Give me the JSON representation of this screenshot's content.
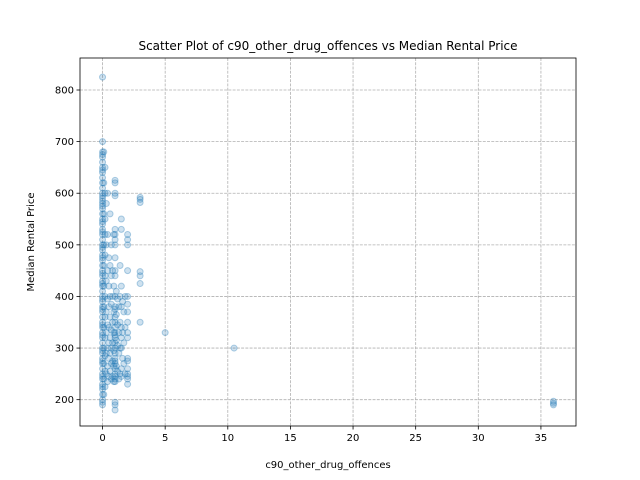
{
  "chart_data": {
    "type": "scatter",
    "title": "Scatter Plot of c90_other_drug_offences vs Median Rental Price",
    "xlabel": "c90_other_drug_offences",
    "ylabel": "Median Rental Price",
    "xlim": [
      -1.8,
      37.8
    ],
    "ylim": [
      149,
      862
    ],
    "xticks": [
      0,
      5,
      10,
      15,
      20,
      25,
      30,
      35
    ],
    "yticks": [
      200,
      300,
      400,
      500,
      600,
      700,
      800
    ],
    "grid": true,
    "color": "#1f77b4",
    "points": [
      [
        0,
        825
      ],
      [
        0,
        700
      ],
      [
        0,
        680
      ],
      [
        0,
        675
      ],
      [
        0,
        670
      ],
      [
        0,
        660
      ],
      [
        0,
        650
      ],
      [
        0,
        645
      ],
      [
        0,
        640
      ],
      [
        0,
        630
      ],
      [
        0,
        620
      ],
      [
        0,
        610
      ],
      [
        0,
        600
      ],
      [
        0,
        595
      ],
      [
        0,
        590
      ],
      [
        0,
        585
      ],
      [
        0,
        580
      ],
      [
        0,
        575
      ],
      [
        0,
        570
      ],
      [
        0,
        560
      ],
      [
        0,
        550
      ],
      [
        0,
        545
      ],
      [
        0,
        540
      ],
      [
        0,
        530
      ],
      [
        0,
        525
      ],
      [
        0,
        520
      ],
      [
        0,
        510
      ],
      [
        0,
        500
      ],
      [
        0,
        495
      ],
      [
        0,
        490
      ],
      [
        0,
        480
      ],
      [
        0,
        475
      ],
      [
        0,
        470
      ],
      [
        0,
        460
      ],
      [
        0,
        450
      ],
      [
        0,
        445
      ],
      [
        0,
        440
      ],
      [
        0,
        430
      ],
      [
        0,
        425
      ],
      [
        0,
        420
      ],
      [
        0,
        410
      ],
      [
        0,
        400
      ],
      [
        0,
        395
      ],
      [
        0,
        390
      ],
      [
        0,
        380
      ],
      [
        0,
        375
      ],
      [
        0,
        370
      ],
      [
        0,
        360
      ],
      [
        0,
        350
      ],
      [
        0,
        345
      ],
      [
        0,
        340
      ],
      [
        0,
        330
      ],
      [
        0,
        325
      ],
      [
        0,
        320
      ],
      [
        0,
        310
      ],
      [
        0,
        300
      ],
      [
        0,
        295
      ],
      [
        0,
        290
      ],
      [
        0,
        280
      ],
      [
        0,
        275
      ],
      [
        0,
        270
      ],
      [
        0,
        260
      ],
      [
        0,
        250
      ],
      [
        0,
        245
      ],
      [
        0,
        240
      ],
      [
        0,
        230
      ],
      [
        0,
        225
      ],
      [
        0,
        220
      ],
      [
        0,
        210
      ],
      [
        0,
        200
      ],
      [
        0,
        195
      ],
      [
        0,
        190
      ],
      [
        0.1,
        680
      ],
      [
        0.1,
        620
      ],
      [
        0.1,
        560
      ],
      [
        0.1,
        500
      ],
      [
        0.1,
        460
      ],
      [
        0.1,
        420
      ],
      [
        0.1,
        380
      ],
      [
        0.1,
        340
      ],
      [
        0.1,
        300
      ],
      [
        0.1,
        270
      ],
      [
        0.1,
        240
      ],
      [
        0.1,
        210
      ],
      [
        0.2,
        650
      ],
      [
        0.2,
        600
      ],
      [
        0.2,
        550
      ],
      [
        0.2,
        520
      ],
      [
        0.2,
        480
      ],
      [
        0.2,
        440
      ],
      [
        0.2,
        400
      ],
      [
        0.2,
        360
      ],
      [
        0.2,
        320
      ],
      [
        0.2,
        285
      ],
      [
        0.2,
        255
      ],
      [
        0.2,
        225
      ],
      [
        0.3,
        580
      ],
      [
        0.3,
        500
      ],
      [
        0.3,
        430
      ],
      [
        0.3,
        370
      ],
      [
        0.3,
        330
      ],
      [
        0.3,
        290
      ],
      [
        0.3,
        250
      ],
      [
        0.4,
        600
      ],
      [
        0.4,
        520
      ],
      [
        0.4,
        450
      ],
      [
        0.4,
        395
      ],
      [
        0.4,
        345
      ],
      [
        0.4,
        300
      ],
      [
        0.4,
        265
      ],
      [
        0.4,
        235
      ],
      [
        0.5,
        475
      ],
      [
        0.5,
        420
      ],
      [
        0.5,
        380
      ],
      [
        0.5,
        340
      ],
      [
        0.5,
        310
      ],
      [
        0.5,
        280
      ],
      [
        0.5,
        245
      ],
      [
        0.6,
        560
      ],
      [
        0.6,
        460
      ],
      [
        0.6,
        400
      ],
      [
        0.6,
        360
      ],
      [
        0.6,
        320
      ],
      [
        0.6,
        290
      ],
      [
        0.6,
        255
      ],
      [
        0.7,
        500
      ],
      [
        0.7,
        440
      ],
      [
        0.7,
        385
      ],
      [
        0.7,
        335
      ],
      [
        0.7,
        300
      ],
      [
        0.7,
        270
      ],
      [
        0.7,
        240
      ],
      [
        0.8,
        450
      ],
      [
        0.8,
        400
      ],
      [
        0.8,
        350
      ],
      [
        0.8,
        310
      ],
      [
        0.8,
        275
      ],
      [
        0.8,
        245
      ],
      [
        0.9,
        520
      ],
      [
        0.9,
        420
      ],
      [
        0.9,
        370
      ],
      [
        0.9,
        330
      ],
      [
        0.9,
        295
      ],
      [
        0.9,
        265
      ],
      [
        0.9,
        235
      ],
      [
        1,
        625
      ],
      [
        1,
        620
      ],
      [
        1,
        600
      ],
      [
        1,
        595
      ],
      [
        1,
        530
      ],
      [
        1,
        520
      ],
      [
        1,
        510
      ],
      [
        1,
        500
      ],
      [
        1,
        475
      ],
      [
        1,
        450
      ],
      [
        1,
        440
      ],
      [
        1,
        400
      ],
      [
        1,
        380
      ],
      [
        1,
        375
      ],
      [
        1,
        360
      ],
      [
        1,
        350
      ],
      [
        1,
        340
      ],
      [
        1,
        330
      ],
      [
        1,
        325
      ],
      [
        1,
        320
      ],
      [
        1,
        310
      ],
      [
        1,
        300
      ],
      [
        1,
        290
      ],
      [
        1,
        280
      ],
      [
        1,
        275
      ],
      [
        1,
        270
      ],
      [
        1,
        260
      ],
      [
        1,
        250
      ],
      [
        1,
        245
      ],
      [
        1,
        240
      ],
      [
        1,
        235
      ],
      [
        1,
        195
      ],
      [
        1,
        190
      ],
      [
        1,
        180
      ],
      [
        1.1,
        410
      ],
      [
        1.1,
        365
      ],
      [
        1.1,
        315
      ],
      [
        1.1,
        265
      ],
      [
        1.2,
        395
      ],
      [
        1.2,
        345
      ],
      [
        1.2,
        305
      ],
      [
        1.2,
        255
      ],
      [
        1.3,
        380
      ],
      [
        1.3,
        330
      ],
      [
        1.3,
        290
      ],
      [
        1.3,
        240
      ],
      [
        1.4,
        460
      ],
      [
        1.4,
        400
      ],
      [
        1.4,
        350
      ],
      [
        1.4,
        300
      ],
      [
        1.4,
        250
      ],
      [
        1.5,
        550
      ],
      [
        1.5,
        530
      ],
      [
        1.5,
        420
      ],
      [
        1.5,
        380
      ],
      [
        1.5,
        340
      ],
      [
        1.5,
        320
      ],
      [
        1.5,
        300
      ],
      [
        1.5,
        260
      ],
      [
        1.5,
        245
      ],
      [
        1.6,
        390
      ],
      [
        1.6,
        330
      ],
      [
        1.6,
        280
      ],
      [
        1.7,
        370
      ],
      [
        1.7,
        310
      ],
      [
        1.7,
        270
      ],
      [
        1.8,
        400
      ],
      [
        1.8,
        340
      ],
      [
        1.8,
        250
      ],
      [
        2,
        520
      ],
      [
        2,
        510
      ],
      [
        2,
        500
      ],
      [
        2,
        450
      ],
      [
        2,
        400
      ],
      [
        2,
        385
      ],
      [
        2,
        370
      ],
      [
        2,
        350
      ],
      [
        2,
        330
      ],
      [
        2,
        320
      ],
      [
        2,
        280
      ],
      [
        2,
        275
      ],
      [
        2,
        260
      ],
      [
        2,
        250
      ],
      [
        2,
        245
      ],
      [
        2,
        240
      ],
      [
        2,
        230
      ],
      [
        3,
        592
      ],
      [
        3,
        588
      ],
      [
        3,
        582
      ],
      [
        3,
        448
      ],
      [
        3,
        440
      ],
      [
        3,
        425
      ],
      [
        3,
        350
      ],
      [
        5,
        330
      ],
      [
        10.5,
        300
      ],
      [
        36,
        197
      ],
      [
        36,
        193
      ],
      [
        36,
        190
      ]
    ]
  }
}
